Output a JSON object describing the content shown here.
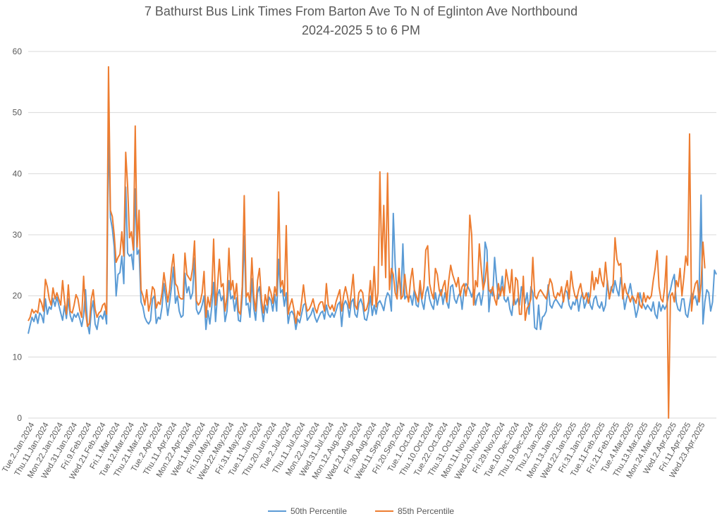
{
  "chart_data": {
    "type": "line",
    "title_line1": "7 Bathurst Bus Link Times From Barton Ave To N of Eglinton Ave Northbound",
    "title_line2": "2024-2025 5 to 6 PM",
    "xlabel": "",
    "ylabel": "",
    "ylim": [
      0,
      60
    ],
    "yticks": [
      0,
      10,
      20,
      30,
      40,
      50,
      60
    ],
    "grid": true,
    "legend_position": "bottom",
    "x_tick_labels": [
      "Tue.2.Jan.2024",
      "Thu.11.Jan.2024",
      "Mon.22.Jan.2024",
      "Wed.31.Jan.2024",
      "Fri.9.Feb.2024",
      "Wed.21.Feb.2024",
      "Fri.1.Mar.2024",
      "Tue.12.Mar.2024",
      "Thu.21.Mar.2024",
      "Tue.2.Apr.2024",
      "Thu.11.Apr.2024",
      "Mon.22.Apr.2024",
      "Wed.1.May.2024",
      "Fri.10.May.2024",
      "Wed.22.May.2024",
      "Fri.31.May.2024",
      "Tue.11.Jun.2024",
      "Thu.20.Jun.2024",
      "Tue.2.Jul.2024",
      "Thu.11.Jul.2024",
      "Mon.22.Jul.2024",
      "Wed.31.Jul.2024",
      "Mon.12.Aug.2024",
      "Wed.21.Aug.2024",
      "Fri.30.Aug.2024",
      "Wed.11.Sep.2024",
      "Fri.20.Sep.2024",
      "Tue.1.Oct.2024",
      "Thu.10.Oct.2024",
      "Tue.22.Oct.2024",
      "Thu.31.Oct.2024",
      "Mon.11.Nov.2024",
      "Wed.20.Nov.2024",
      "Fri.29.Nov.2024",
      "Tue.10.Dec.2024",
      "Thu.19.Dec.2024",
      "Thu.2.Jan.2025",
      "Mon.13.Jan.2025",
      "Wed.22.Jan.2025",
      "Fri.31.Jan.2025",
      "Tue.11.Feb.2025",
      "Fri.21.Feb.2025",
      "Tue.4.Mar.2025",
      "Thu.13.Mar.2025",
      "Mon.24.Mar.2025",
      "Wed.2.Apr.2025",
      "Fri.11.Apr.2025",
      "Wed.23.Apr.2025"
    ],
    "series": [
      {
        "name": "50th Percentile",
        "color": "#5b9bd5",
        "values": [
          13.8,
          15.2,
          16.5,
          15.8,
          17.0,
          15.5,
          17.2,
          16.8,
          15.6,
          19.5,
          17.0,
          18.2,
          17.8,
          19.6,
          18.3,
          19.8,
          18.5,
          17.2,
          16.0,
          18.4,
          16.3,
          19.5,
          16.8,
          15.8,
          17.0,
          16.5,
          17.2,
          16.2,
          15.0,
          16.8,
          21.0,
          15.5,
          13.8,
          17.5,
          19.2,
          15.4,
          14.5,
          16.5,
          16.8,
          16.2,
          17.5,
          15.4,
          47.5,
          32.8,
          31.0,
          28.0,
          20.0,
          23.5,
          23.8,
          26.5,
          22.0,
          37.8,
          27.0,
          26.5,
          26.8,
          24.3,
          37.5,
          26.8,
          27.5,
          19.0,
          18.2,
          16.5,
          15.8,
          15.4,
          16.0,
          19.5,
          20.0,
          15.5,
          16.5,
          16.2,
          18.2,
          22.0,
          19.5,
          16.8,
          19.0,
          21.5,
          24.7,
          18.8,
          20.0,
          17.5,
          16.5,
          16.8,
          23.7,
          20.5,
          21.5,
          19.5,
          20.5,
          26.2,
          17.8,
          17.0,
          17.5,
          18.5,
          20.0,
          14.5,
          17.6,
          15.4,
          18.2,
          22.2,
          15.8,
          20.0,
          21.0,
          19.2,
          20.0,
          15.8,
          17.5,
          22.5,
          19.5,
          20.0,
          17.5,
          19.7,
          16.0,
          15.8,
          19.8,
          29.8,
          18.5,
          18.8,
          16.5,
          22.8,
          18.0,
          16.0,
          20.5,
          21.5,
          18.0,
          15.8,
          18.5,
          17.2,
          19.8,
          19.2,
          17.5,
          20.2,
          17.5,
          26.0,
          20.5,
          21.0,
          18.3,
          20.5,
          15.5,
          17.2,
          17.5,
          16.8,
          14.5,
          16.2,
          15.6,
          17.0,
          18.5,
          18.8,
          16.0,
          16.5,
          17.0,
          18.0,
          16.5,
          15.7,
          16.5,
          17.2,
          17.5,
          16.2,
          18.5,
          17.0,
          16.5,
          17.2,
          16.5,
          17.5,
          18.6,
          19.0,
          15.0,
          18.5,
          19.2,
          18.5,
          16.5,
          19.0,
          19.5,
          17.0,
          16.5,
          18.8,
          19.5,
          18.5,
          16.2,
          16.0,
          17.5,
          20.0,
          16.8,
          18.5,
          17.0,
          18.8,
          19.2,
          18.5,
          17.6,
          19.5,
          20.5,
          20.0,
          17.5,
          33.5,
          25.0,
          20.0,
          24.0,
          19.5,
          28.5,
          19.5,
          20.0,
          19.5,
          20.0,
          18.5,
          21.0,
          18.5,
          18.2,
          21.5,
          19.0,
          17.8,
          20.5,
          21.5,
          19.5,
          18.5,
          17.8,
          20.5,
          18.5,
          20.0,
          21.0,
          18.6,
          20.5,
          19.0,
          18.0,
          21.5,
          21.8,
          19.5,
          18.8,
          20.0,
          20.5,
          17.8,
          21.0,
          22.0,
          21.5,
          20.8,
          19.8,
          21.0,
          18.5,
          20.0,
          20.5,
          18.5,
          20.5,
          28.8,
          27.5,
          17.4,
          21.0,
          20.0,
          26.3,
          22.5,
          19.5,
          20.8,
          23.2,
          19.5,
          19.0,
          19.8,
          17.8,
          16.8,
          20.0,
          18.6,
          19.5,
          18.5,
          21.5,
          20.5,
          18.8,
          20.5,
          17.0,
          21.5,
          20.5,
          14.8,
          14.5,
          18.5,
          14.5,
          16.5,
          16.8,
          17.5,
          21.8,
          18.5,
          18.0,
          19.0,
          19.5,
          19.0,
          18.5,
          18.0,
          19.5,
          21.0,
          20.5,
          18.5,
          17.8,
          19.0,
          18.5,
          20.0,
          17.5,
          19.5,
          20.5,
          18.0,
          19.0,
          20.5,
          18.5,
          17.8,
          19.5,
          20.0,
          18.5,
          18.0,
          19.0,
          17.5,
          18.5,
          22.5,
          19.5,
          21.5,
          20.5,
          22.5,
          21.0,
          20.0,
          23.0,
          20.8,
          17.8,
          19.5,
          20.5,
          22.0,
          20.0,
          18.5,
          16.5,
          17.8,
          20.5,
          19.0,
          18.5,
          17.8,
          18.5,
          18.0,
          17.5,
          19.0,
          17.0,
          16.3,
          19.0,
          17.5,
          18.5,
          17.8,
          18.5,
          20.0,
          21.0,
          22.5,
          23.5,
          19.0,
          17.8,
          17.5,
          19.5,
          19.5,
          17.0,
          16.5,
          18.5,
          20.5,
          19.5,
          20.0,
          18.5,
          21.0,
          36.5,
          15.4,
          19.0,
          21.0,
          20.5,
          17.5,
          19.0,
          24.2,
          23.5
        ]
      },
      {
        "name": "85th Percentile",
        "color": "#ed7d31",
        "values": [
          15.9,
          16.5,
          17.8,
          17.2,
          17.6,
          17.2,
          19.5,
          18.8,
          17.5,
          22.7,
          21.5,
          19.5,
          18.5,
          21.3,
          19.5,
          20.5,
          19.5,
          18.5,
          22.5,
          19.2,
          17.0,
          21.8,
          17.5,
          17.2,
          18.5,
          20.2,
          19.5,
          17.6,
          16.5,
          23.2,
          17.5,
          15.0,
          15.5,
          19.5,
          21.0,
          17.8,
          16.5,
          17.2,
          17.5,
          18.5,
          18.8,
          17.0,
          57.5,
          34.0,
          33.0,
          30.0,
          25.5,
          26.3,
          26.8,
          30.5,
          26.5,
          43.5,
          38.0,
          29.5,
          30.5,
          27.5,
          47.8,
          28.0,
          34.0,
          21.0,
          20.0,
          18.5,
          21.0,
          17.5,
          19.0,
          21.5,
          21.0,
          18.0,
          19.0,
          18.6,
          20.5,
          23.8,
          21.5,
          19.0,
          21.0,
          24.5,
          26.8,
          22.0,
          21.5,
          19.8,
          19.5,
          19.5,
          27.0,
          23.5,
          23.0,
          22.5,
          24.5,
          29.0,
          19.2,
          18.5,
          19.0,
          20.5,
          24.0,
          16.5,
          19.8,
          18.2,
          20.5,
          29.3,
          18.5,
          21.5,
          26.0,
          21.5,
          22.0,
          17.5,
          20.0,
          27.8,
          21.0,
          22.5,
          19.5,
          22.0,
          17.5,
          17.0,
          21.5,
          36.4,
          19.8,
          20.5,
          19.0,
          26.2,
          20.0,
          17.5,
          22.5,
          24.5,
          19.5,
          17.2,
          20.2,
          18.5,
          21.5,
          20.5,
          18.8,
          21.5,
          20.0,
          37.0,
          21.5,
          22.5,
          20.0,
          31.5,
          17.0,
          18.5,
          19.5,
          17.8,
          15.5,
          17.5,
          16.8,
          19.0,
          21.8,
          19.0,
          17.5,
          17.8,
          18.5,
          19.5,
          18.0,
          17.2,
          18.5,
          19.0,
          19.0,
          17.5,
          22.0,
          18.5,
          17.8,
          18.5,
          17.5,
          19.0,
          20.0,
          21.0,
          17.5,
          20.0,
          21.5,
          20.0,
          18.0,
          20.5,
          23.5,
          18.5,
          17.8,
          20.5,
          21.0,
          20.5,
          17.5,
          17.8,
          19.0,
          22.5,
          18.5,
          24.8,
          18.2,
          20.5,
          40.3,
          25.0,
          34.8,
          23.0,
          40.1,
          21.0,
          24.5,
          23.5,
          20.5,
          19.5,
          24.5,
          19.5,
          20.0,
          23.5,
          20.5,
          19.0,
          22.5,
          24.5,
          21.0,
          20.0,
          19.0,
          22.5,
          19.5,
          21.5,
          27.5,
          28.2,
          22.0,
          20.5,
          19.5,
          24.5,
          23.5,
          21.0,
          20.0,
          21.5,
          22.5,
          19.0,
          22.5,
          25.0,
          23.5,
          22.5,
          21.5,
          23.0,
          20.0,
          21.5,
          22.0,
          20.0,
          22.0,
          33.2,
          30.0,
          18.5,
          22.5,
          21.5,
          28.5,
          24.5,
          21.0,
          22.5,
          25.5,
          21.0,
          20.5,
          21.5,
          19.5,
          18.5,
          22.0,
          20.0,
          21.5,
          20.0,
          24.3,
          22.5,
          20.5,
          24.3,
          18.5,
          23.0,
          22.5,
          17.0,
          17.0,
          23.2,
          16.0,
          18.0,
          18.5,
          19.5,
          26.3,
          20.0,
          19.5,
          20.5,
          21.0,
          20.5,
          20.0,
          19.5,
          21.0,
          22.8,
          22.0,
          20.0,
          19.5,
          20.5,
          20.0,
          21.5,
          19.0,
          21.0,
          22.5,
          19.5,
          24.0,
          21.5,
          20.0,
          19.5,
          21.0,
          22.0,
          20.0,
          19.5,
          20.5,
          18.8,
          20.0,
          24.0,
          21.0,
          23.0,
          22.0,
          24.5,
          22.5,
          21.5,
          25.5,
          22.0,
          19.5,
          21.0,
          22.0,
          29.5,
          26.0,
          25.0,
          25.3,
          19.5,
          22.0,
          20.5,
          20.0,
          19.0,
          20.0,
          19.5,
          18.8,
          20.5,
          18.5,
          18.0,
          20.5,
          19.0,
          20.0,
          19.5,
          20.0,
          22.5,
          24.5,
          27.4,
          21.5,
          19.5,
          19.0,
          21.5,
          26.5,
          0.0,
          20.0,
          20.5,
          19.0,
          22.5,
          21.5,
          24.5,
          20.0,
          23.0,
          26.5,
          25.0,
          46.5,
          17.5,
          20.5,
          22.0,
          22.5,
          19.0,
          22.0,
          28.8,
          24.5
        ]
      }
    ]
  }
}
